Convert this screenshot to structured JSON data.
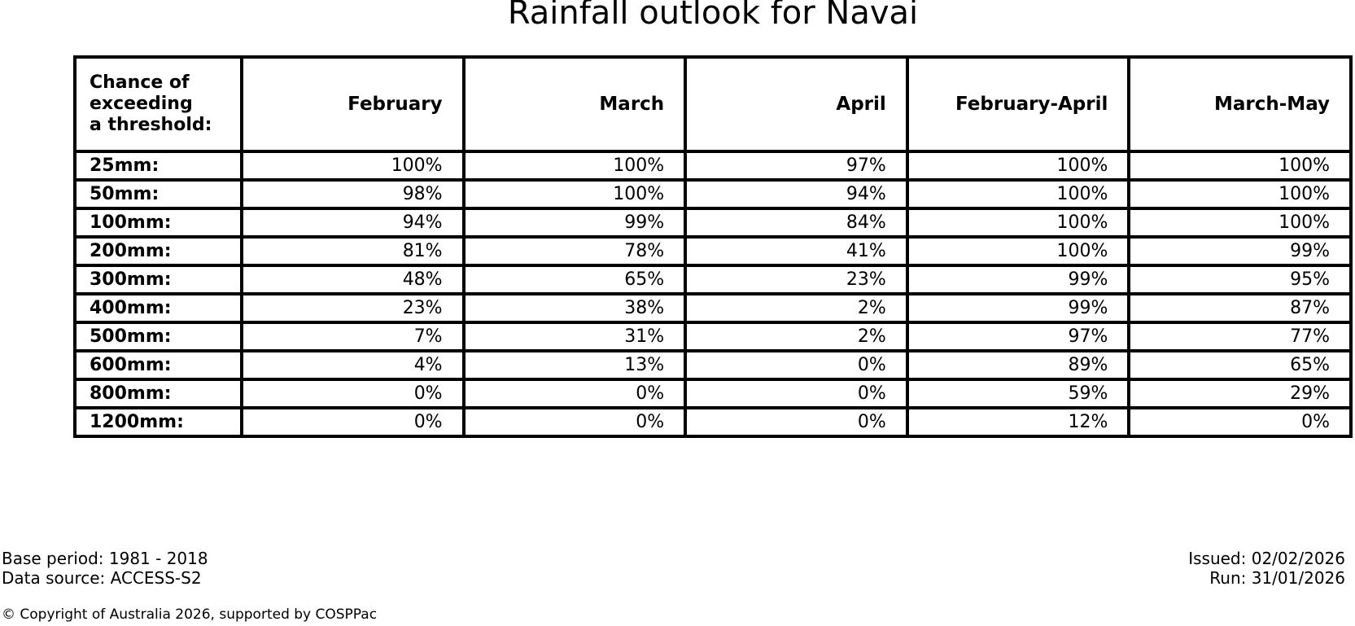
{
  "title": "Rainfall outlook for Navai",
  "chart_data": {
    "type": "table",
    "title": "Rainfall outlook for Navai",
    "corner_header_lines": [
      "Chance of",
      "exceeding",
      "a threshold:"
    ],
    "columns": [
      "February",
      "March",
      "April",
      "February-April",
      "March-May"
    ],
    "unit": "%",
    "rows": [
      {
        "label": "25mm:",
        "values": [
          "100%",
          "100%",
          "97%",
          "100%",
          "100%"
        ]
      },
      {
        "label": "50mm:",
        "values": [
          "98%",
          "100%",
          "94%",
          "100%",
          "100%"
        ]
      },
      {
        "label": "100mm:",
        "values": [
          "94%",
          "99%",
          "84%",
          "100%",
          "100%"
        ]
      },
      {
        "label": "200mm:",
        "values": [
          "81%",
          "78%",
          "41%",
          "100%",
          "99%"
        ]
      },
      {
        "label": "300mm:",
        "values": [
          "48%",
          "65%",
          "23%",
          "99%",
          "95%"
        ]
      },
      {
        "label": "400mm:",
        "values": [
          "23%",
          "38%",
          "2%",
          "99%",
          "87%"
        ]
      },
      {
        "label": "500mm:",
        "values": [
          "7%",
          "31%",
          "2%",
          "97%",
          "77%"
        ]
      },
      {
        "label": "600mm:",
        "values": [
          "4%",
          "13%",
          "0%",
          "89%",
          "65%"
        ]
      },
      {
        "label": "800mm:",
        "values": [
          "0%",
          "0%",
          "0%",
          "59%",
          "29%"
        ]
      },
      {
        "label": "1200mm:",
        "values": [
          "0%",
          "0%",
          "0%",
          "12%",
          "0%"
        ]
      }
    ],
    "values_numeric": [
      [
        100,
        100,
        97,
        100,
        100
      ],
      [
        98,
        100,
        94,
        100,
        100
      ],
      [
        94,
        99,
        84,
        100,
        100
      ],
      [
        81,
        78,
        41,
        100,
        99
      ],
      [
        48,
        65,
        23,
        99,
        95
      ],
      [
        23,
        38,
        2,
        99,
        87
      ],
      [
        7,
        31,
        2,
        97,
        77
      ],
      [
        4,
        13,
        0,
        89,
        65
      ],
      [
        0,
        0,
        0,
        59,
        29
      ],
      [
        0,
        0,
        0,
        12,
        0
      ]
    ]
  },
  "footer": {
    "base_period": "Base period: 1981 - 2018",
    "data_source": "Data source: ACCESS-S2",
    "issued": "Issued: 02/02/2026",
    "run": "Run: 31/01/2026",
    "copyright": "© Copyright of Australia 2026, supported by COSPPac"
  },
  "colors": {
    "text": "#000000",
    "border": "#000000",
    "background": "#ffffff"
  }
}
